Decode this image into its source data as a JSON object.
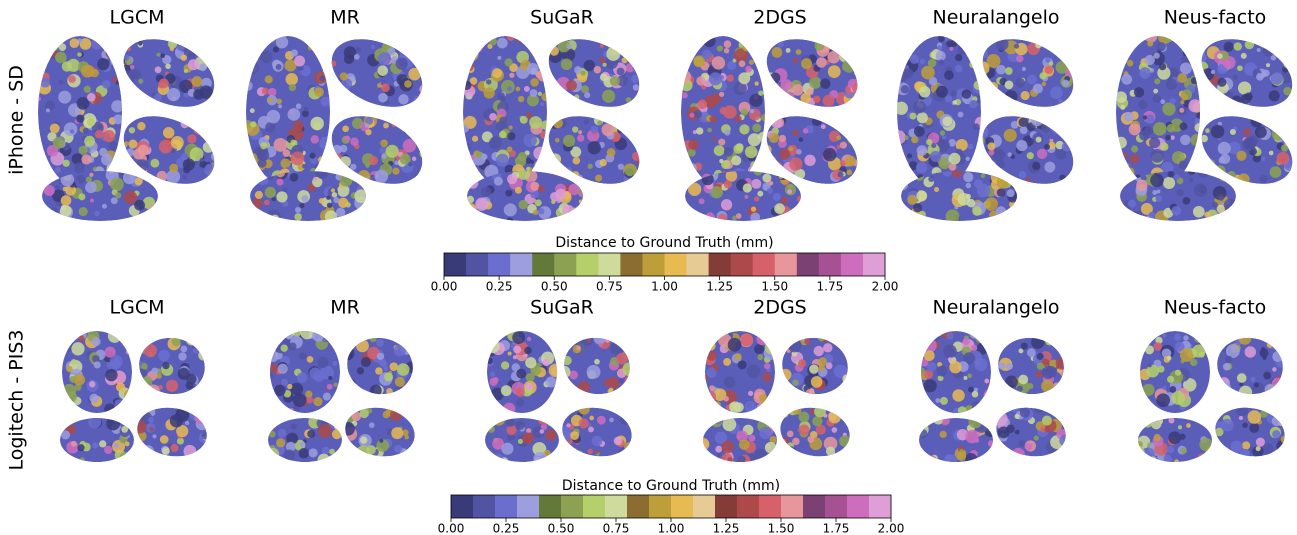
{
  "rows": [
    {
      "label": "iPhone - SD",
      "methods": [
        "LGCM",
        "MR",
        "SuGaR",
        "2DGS",
        "Neuralangelo",
        "Neus-facto"
      ]
    },
    {
      "label": "Logitech - PIS3",
      "methods": [
        "LGCM",
        "MR",
        "SuGaR",
        "2DGS",
        "Neuralangelo",
        "Neus-facto"
      ]
    }
  ],
  "colorbars": [
    {
      "title": "Distance to Ground Truth (mm)",
      "lim": [
        0,
        2
      ],
      "ticks": [
        {
          "value": 0,
          "label": "0.00"
        },
        {
          "value": 0.25,
          "label": "0.25"
        },
        {
          "value": 0.5,
          "label": "0.50"
        },
        {
          "value": 0.75,
          "label": "0.75"
        },
        {
          "value": 1,
          "label": "1.00"
        },
        {
          "value": 1.25,
          "label": "1.25"
        },
        {
          "value": 1.5,
          "label": "1.50"
        },
        {
          "value": 1.75,
          "label": "1.75"
        },
        {
          "value": 2,
          "label": "2.00"
        }
      ],
      "colors": [
        "#393b79",
        "#5254a3",
        "#6b6ecf",
        "#9c9ede",
        "#637939",
        "#8ca252",
        "#b5cf6b",
        "#cedb9c",
        "#8c6d31",
        "#bd9e39",
        "#e7ba52",
        "#e7cb94",
        "#843c39",
        "#ad494a",
        "#d6616b",
        "#e7969c",
        "#7b4173",
        "#a55194",
        "#ce6dbd",
        "#de9ed6"
      ]
    },
    {
      "title": "Distance to Ground Truth (mm)",
      "lim": [
        0,
        2
      ],
      "ticks": [
        {
          "value": 0,
          "label": "0.00"
        },
        {
          "value": 0.25,
          "label": "0.25"
        },
        {
          "value": 0.5,
          "label": "0.50"
        },
        {
          "value": 0.75,
          "label": "0.75"
        },
        {
          "value": 1,
          "label": "1.00"
        },
        {
          "value": 1.25,
          "label": "1.25"
        },
        {
          "value": 1.5,
          "label": "1.50"
        },
        {
          "value": 1.75,
          "label": "1.75"
        },
        {
          "value": 2,
          "label": "2.00"
        }
      ],
      "colors": [
        "#393b79",
        "#5254a3",
        "#6b6ecf",
        "#9c9ede",
        "#637939",
        "#8ca252",
        "#b5cf6b",
        "#cedb9c",
        "#8c6d31",
        "#bd9e39",
        "#e7ba52",
        "#e7cb94",
        "#843c39",
        "#ad494a",
        "#d6616b",
        "#e7969c",
        "#7b4173",
        "#a55194",
        "#ce6dbd",
        "#de9ed6"
      ]
    }
  ]
}
